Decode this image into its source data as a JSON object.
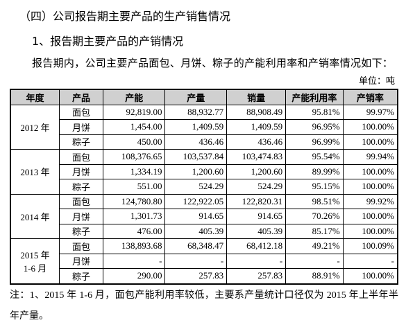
{
  "heading": "（四）公司报告期主要产品的生产销售情况",
  "subheading": "1、报告期主要产品的产销情况",
  "intro": "报告期内，公司主要产品面包、月饼、粽子的产能利用率和产销率情况如下：",
  "unit": "单位：吨",
  "table": {
    "header": [
      "年度",
      "产品",
      "产能",
      "产量",
      "销量",
      "产能利用率",
      "产销率"
    ],
    "groups": [
      {
        "year": [
          "2012 年"
        ],
        "rows": [
          [
            "面包",
            "92,819.00",
            "88,932.77",
            "88,908.49",
            "95.81%",
            "99.97%"
          ],
          [
            "月饼",
            "1,454.00",
            "1,409.59",
            "1,409.59",
            "96.95%",
            "100.00%"
          ],
          [
            "粽子",
            "450.00",
            "436.46",
            "436.46",
            "96.99%",
            "100.00%"
          ]
        ]
      },
      {
        "year": [
          "2013 年"
        ],
        "rows": [
          [
            "面包",
            "108,376.65",
            "103,537.84",
            "103,474.83",
            "95.54%",
            "99.94%"
          ],
          [
            "月饼",
            "1,334.19",
            "1,200.60",
            "1,200.60",
            "89.99%",
            "100.00%"
          ],
          [
            "粽子",
            "551.00",
            "524.29",
            "524.29",
            "95.15%",
            "100.00%"
          ]
        ]
      },
      {
        "year": [
          "2014 年"
        ],
        "rows": [
          [
            "面包",
            "124,780.80",
            "122,922.05",
            "122,820.31",
            "98.51%",
            "99.92%"
          ],
          [
            "月饼",
            "1,301.73",
            "914.65",
            "914.65",
            "70.26%",
            "100.00%"
          ],
          [
            "粽子",
            "476.00",
            "405.39",
            "405.39",
            "85.17%",
            "100.00%"
          ]
        ]
      },
      {
        "year": [
          "2015 年",
          "1-6 月"
        ],
        "rows": [
          [
            "面包",
            "138,893.68",
            "68,348.47",
            "68,412.18",
            "49.21%",
            "100.09%"
          ],
          [
            "月饼",
            "-",
            "-",
            "-",
            "-",
            "-"
          ],
          [
            "粽子",
            "290.00",
            "257.83",
            "257.83",
            "88.91%",
            "100.00%"
          ]
        ]
      }
    ]
  },
  "note": "注：1、2015 年 1-6 月，面包产能利用率较低，主要系产量统计口径仅为 2015 年上半年半年产量。"
}
